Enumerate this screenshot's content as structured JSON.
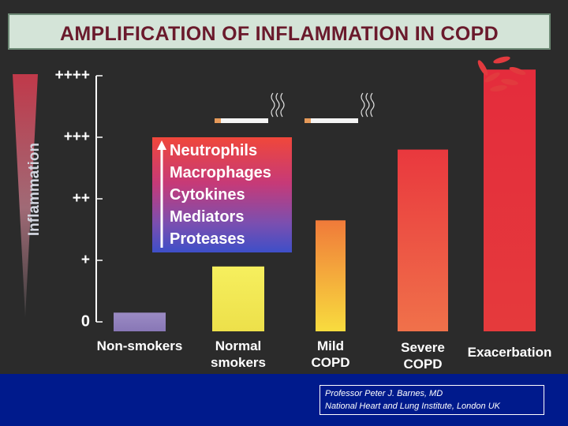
{
  "title": "AMPLIFICATION OF INFLAMMATION IN COPD",
  "colors": {
    "background": "#2b2b2b",
    "title_bg": "#d4e4d8",
    "title_text": "#6a1a2c",
    "footer_bg": "#001a8c"
  },
  "chart_data": {
    "type": "bar",
    "ylabel": "Inflammation",
    "yticks": [
      "0",
      "+",
      "++",
      "+++",
      "++++"
    ],
    "ylim": [
      0,
      4
    ],
    "categories": [
      "Non-smokers",
      "Normal smokers",
      "Mild COPD",
      "Severe COPD",
      "Exacerbation"
    ],
    "category_labels": [
      [
        "Non-smokers"
      ],
      [
        "Normal",
        "smokers"
      ],
      [
        "Mild",
        "COPD"
      ],
      [
        "Severe",
        "COPD"
      ],
      [
        "Exacerbation"
      ]
    ],
    "values": [
      0.15,
      0.9,
      1.65,
      2.8,
      4.1
    ],
    "bar_colors": [
      [
        "#9b8bc4",
        "#8877b6"
      ],
      [
        "#f6ef5e",
        "#ede04a"
      ],
      [
        "#f07a3a",
        "#f8dc3e"
      ],
      [
        "#e9383e",
        "#f0714a"
      ],
      [
        "#e42c3c",
        "#e53a3c"
      ]
    ],
    "smoker_icons": [
      "Normal smokers",
      "Mild COPD"
    ],
    "legend": {
      "arrow": "up",
      "items": [
        "Neutrophils",
        "Macrophages",
        "Cytokines",
        "Mediators",
        "Proteases"
      ]
    }
  },
  "credit": {
    "line1": "Professor Peter J. Barnes, MD",
    "line2": "National Heart and Lung Institute, London UK"
  }
}
